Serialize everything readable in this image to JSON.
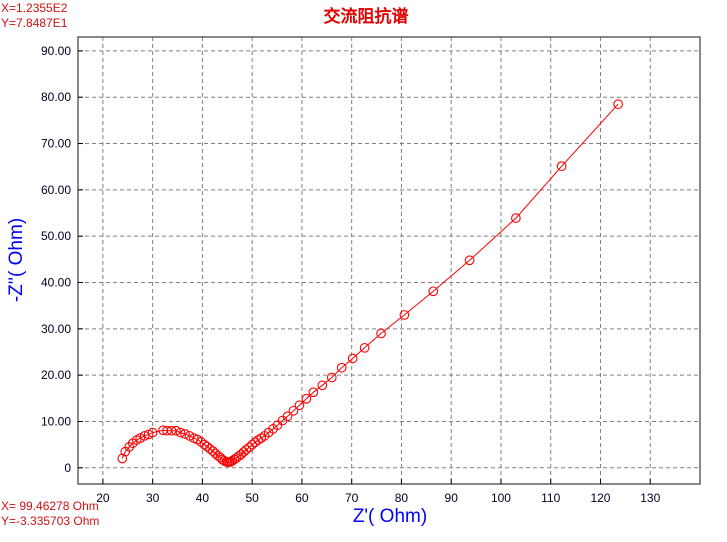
{
  "cursor_readout_top": {
    "x": "X=1.2355E2",
    "y": "Y=7.8487E1"
  },
  "cursor_readout_bottom": {
    "x": "X= 99.46278 Ohm",
    "y": "Y=-3.335703 Ohm"
  },
  "colors": {
    "series": "#ff0000",
    "title": "#e00000",
    "axis_label": "#0000ff",
    "grid": "#808080",
    "readout": "#d01010"
  },
  "chart_data": {
    "type": "scatter",
    "title": "交流阻抗谱",
    "xlabel": "Z'( Ohm)",
    "ylabel": "-Z''( Ohm)",
    "xlim": [
      15,
      140
    ],
    "ylim": [
      -3.5,
      93
    ],
    "xticks": [
      20,
      30,
      40,
      50,
      60,
      70,
      80,
      90,
      100,
      110,
      120,
      130
    ],
    "yticks": [
      "0",
      "10.00",
      "20.00",
      "30.00",
      "40.00",
      "50.00",
      "60.00",
      "70.00",
      "80.00",
      "90.00"
    ],
    "grid": true,
    "marker": "open-circle",
    "line": true,
    "x": [
      23.9,
      24.5,
      25.3,
      26.0,
      26.8,
      27.5,
      28.4,
      29.2,
      30.0,
      32.1,
      32.9,
      33.8,
      34.7,
      35.6,
      36.5,
      37.4,
      38.3,
      39.0,
      39.7,
      40.4,
      40.9,
      41.5,
      42.1,
      42.6,
      43.1,
      43.6,
      44.0,
      44.4,
      44.8,
      45.1,
      45.4,
      45.7,
      46.0,
      46.4,
      46.8,
      47.3,
      47.8,
      48.3,
      48.8,
      49.4,
      50.0,
      50.6,
      51.2,
      51.8,
      52.5,
      53.3,
      54.2,
      55.1,
      56.1,
      57.1,
      58.3,
      59.5,
      60.9,
      62.3,
      64.1,
      66.0,
      68.0,
      70.2,
      72.6,
      75.9,
      80.6,
      86.4,
      93.7,
      103.0,
      112.2,
      123.55
    ],
    "y": [
      2.0,
      3.5,
      4.5,
      5.3,
      6.0,
      6.4,
      6.9,
      7.2,
      7.6,
      8.1,
      8.0,
      8.0,
      8.0,
      7.6,
      7.3,
      6.9,
      6.4,
      6.1,
      5.6,
      5.0,
      4.6,
      4.1,
      3.6,
      3.1,
      2.6,
      2.2,
      1.8,
      1.5,
      1.3,
      1.2,
      1.2,
      1.3,
      1.5,
      1.8,
      2.1,
      2.5,
      2.9,
      3.4,
      3.9,
      4.4,
      5.0,
      5.5,
      6.0,
      6.4,
      6.9,
      7.6,
      8.4,
      9.2,
      10.2,
      11.1,
      12.3,
      13.5,
      14.9,
      16.3,
      17.8,
      19.5,
      21.6,
      23.6,
      25.9,
      29.0,
      33.0,
      38.1,
      44.8,
      53.9,
      65.1,
      78.49
    ]
  }
}
